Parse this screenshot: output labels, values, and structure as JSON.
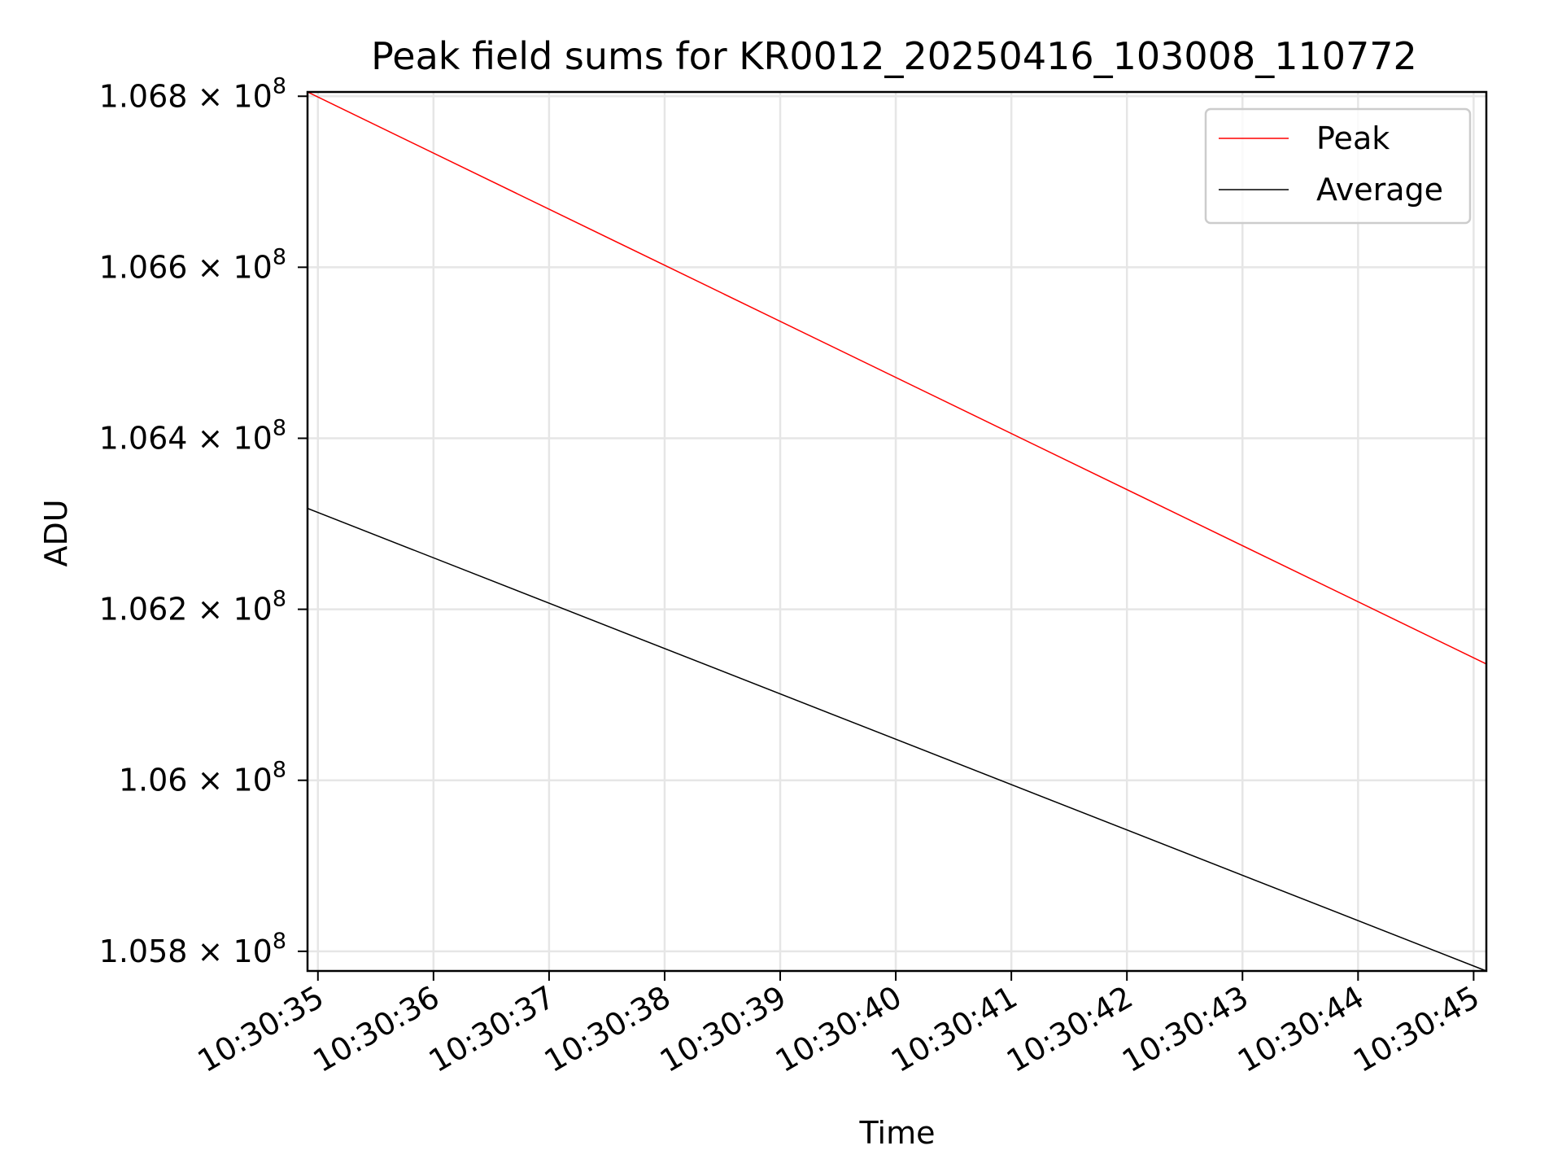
{
  "chart_data": {
    "type": "line",
    "title": "Peak field sums for KR0012_20250416_103008_110772",
    "xlabel": "Time",
    "ylabel": "ADU",
    "x_tick_labels": [
      "10:30:35",
      "10:30:36",
      "10:30:37",
      "10:30:38",
      "10:30:39",
      "10:30:40",
      "10:30:41",
      "10:30:42",
      "10:30:43",
      "10:30:44",
      "10:30:45"
    ],
    "x_tick_seconds": [
      35,
      36,
      37,
      38,
      39,
      40,
      41,
      42,
      43,
      44,
      45
    ],
    "xlim": [
      34.91,
      45.11
    ],
    "y_tick_values": [
      105800000,
      106000000,
      106200000,
      106400000,
      106600000,
      106800000
    ],
    "y_tick_mantissas": [
      "1.058",
      "1.06",
      "1.062",
      "1.064",
      "1.066",
      "1.068"
    ],
    "y_tick_multiplier": "× 10",
    "y_tick_exponent": "8",
    "ylim": [
      105777000,
      106805000
    ],
    "grid": true,
    "legend_position": "top-right",
    "series": [
      {
        "name": "Peak",
        "color": "#ff0000",
        "x": [
          34.91,
          45.11
        ],
        "y": [
          106805000,
          106136000
        ]
      },
      {
        "name": "Average",
        "color": "#000000",
        "x": [
          34.91,
          45.11
        ],
        "y": [
          106318000,
          105777000
        ]
      }
    ]
  }
}
